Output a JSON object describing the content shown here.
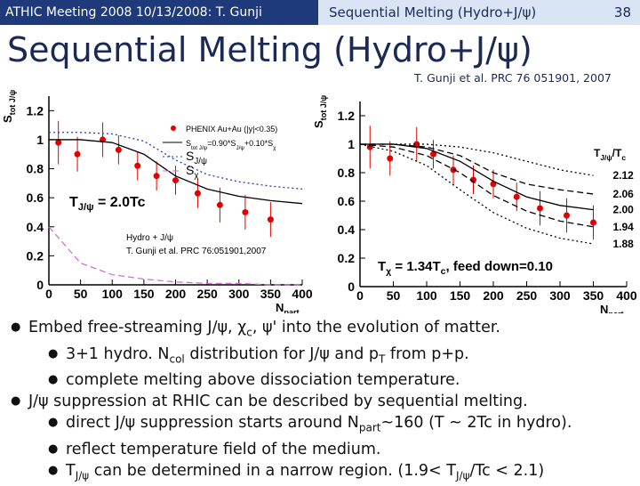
{
  "header": {
    "left": "ATHIC Meeting 2008 10/13/2008: T. Gunji",
    "center": "Sequential Melting (Hydro+J/ψ)",
    "page": "38"
  },
  "title": "Sequential Melting (Hydro+J/ψ)",
  "citation": "T. Gunji et al. PRC 76 051901, 2007",
  "plots": [
    {
      "type": "line",
      "ylabel": [
        "S",
        "tot J/ψ"
      ],
      "xlabel": [
        "N",
        "part"
      ],
      "xlim": [
        0,
        400
      ],
      "xticks": [
        0,
        50,
        100,
        150,
        200,
        250,
        300,
        350,
        400
      ],
      "ylim": [
        0,
        1.3
      ],
      "yticks": [
        0,
        0.2,
        0.4,
        0.6,
        0.8,
        1,
        1.2
      ],
      "legend": "upper-right",
      "annotations": [
        [
          "T",
          "J/ψ",
          " = 2.0Tc"
        ],
        [
          "Hydro + J/ψ"
        ],
        [
          "T. Gunji et al. PRC 76:051901,2007"
        ]
      ],
      "series": [
        {
          "name": [
            "PHENIX Au+Au (|y|<0.35)"
          ],
          "style": "points",
          "color": "#e00000",
          "x": [
            15,
            45,
            85,
            110,
            140,
            170,
            200,
            235,
            270,
            310,
            350
          ],
          "values": [
            0.98,
            0.9,
            1.0,
            0.93,
            0.82,
            0.75,
            0.72,
            0.63,
            0.55,
            0.5,
            0.45
          ],
          "errors": [
            0.15,
            0.12,
            0.12,
            0.1,
            0.1,
            0.1,
            0.1,
            0.1,
            0.12,
            0.12,
            0.12
          ]
        },
        {
          "name": [
            "S",
            "tot J/ψ",
            "=0.90*S",
            "J/ψ",
            "+0.10*S",
            "χ"
          ],
          "style": "solid",
          "color": "#000000",
          "x": [
            0,
            50,
            100,
            150,
            200,
            250,
            300,
            350,
            400
          ],
          "values": [
            1.0,
            1.0,
            0.98,
            0.9,
            0.75,
            0.66,
            0.61,
            0.58,
            0.56
          ]
        },
        {
          "name": [
            "S",
            "J/ψ"
          ],
          "style": "dotted",
          "color": "#1f3fbf",
          "x": [
            0,
            50,
            100,
            150,
            200,
            250,
            300,
            350,
            400
          ],
          "values": [
            1.05,
            1.05,
            1.04,
            0.99,
            0.86,
            0.76,
            0.71,
            0.68,
            0.66
          ]
        },
        {
          "name": [
            "S",
            "χ"
          ],
          "style": "dashed",
          "color": "#d070d0",
          "x": [
            0,
            50,
            100,
            150,
            200,
            250,
            300,
            350,
            400
          ],
          "values": [
            0.4,
            0.15,
            0.07,
            0.04,
            0.02,
            0.01,
            0.01,
            0.0,
            0.0
          ]
        }
      ]
    },
    {
      "type": "line",
      "ylabel": [
        "S",
        "tot J/ψ"
      ],
      "xlabel": [
        "N",
        "part"
      ],
      "xlim": [
        0,
        400
      ],
      "xticks": [
        0,
        50,
        100,
        150,
        200,
        250,
        300,
        350,
        400
      ],
      "ylim": [
        0,
        1.3
      ],
      "yticks": [
        0,
        0.2,
        0.4,
        0.6,
        0.8,
        1,
        1.2
      ],
      "legend": "curve-ends",
      "legend_title": [
        "T",
        "J/ψ",
        "/T",
        "c"
      ],
      "annotations": [
        [
          "T",
          "χ",
          " = 1.34T",
          "c",
          ", feed down=0.10"
        ]
      ],
      "series": [
        {
          "style": "points",
          "color": "#e00000",
          "x": [
            15,
            45,
            85,
            110,
            140,
            170,
            200,
            235,
            270,
            310,
            350
          ],
          "values": [
            0.98,
            0.9,
            1.0,
            0.93,
            0.82,
            0.75,
            0.72,
            0.63,
            0.55,
            0.5,
            0.45
          ],
          "errors": [
            0.15,
            0.12,
            0.12,
            0.1,
            0.1,
            0.1,
            0.1,
            0.1,
            0.12,
            0.12,
            0.12
          ]
        },
        {
          "name": [
            "2.12"
          ],
          "style": "dotted",
          "color": "#000000",
          "x": [
            0,
            50,
            100,
            150,
            200,
            250,
            300,
            350
          ],
          "values": [
            1.0,
            1.0,
            1.0,
            0.98,
            0.94,
            0.88,
            0.82,
            0.78
          ]
        },
        {
          "name": [
            "2.06"
          ],
          "style": "dashed",
          "color": "#000000",
          "x": [
            0,
            50,
            100,
            150,
            200,
            250,
            300,
            350
          ],
          "values": [
            1.0,
            1.0,
            0.98,
            0.92,
            0.8,
            0.72,
            0.68,
            0.65
          ]
        },
        {
          "name": [
            "2.00"
          ],
          "style": "solid",
          "color": "#000000",
          "x": [
            0,
            50,
            100,
            150,
            200,
            250,
            300,
            350
          ],
          "values": [
            1.0,
            1.0,
            0.97,
            0.88,
            0.74,
            0.63,
            0.57,
            0.54
          ]
        },
        {
          "name": [
            "1.94"
          ],
          "style": "dashed",
          "color": "#000000",
          "x": [
            0,
            50,
            100,
            150,
            200,
            250,
            300,
            350
          ],
          "values": [
            1.0,
            0.98,
            0.92,
            0.8,
            0.64,
            0.53,
            0.46,
            0.42
          ]
        },
        {
          "name": [
            "1.88"
          ],
          "style": "dotted",
          "color": "#000000",
          "x": [
            0,
            50,
            100,
            150,
            200,
            250,
            300,
            350
          ],
          "values": [
            1.0,
            0.95,
            0.85,
            0.68,
            0.52,
            0.41,
            0.34,
            0.3
          ]
        }
      ]
    }
  ],
  "bullets": [
    {
      "parts": [
        "Embed free-streaming J/ψ, χ",
        "c",
        ", ψ' into the evolution of matter."
      ],
      "children": [
        {
          "parts": [
            "3+1 hydro. N",
            "col",
            " distribution for J/ψ and p",
            "T",
            " from p+p."
          ]
        },
        {
          "parts": [
            "complete melting above dissociation temperature."
          ]
        }
      ]
    },
    {
      "parts": [
        "J/ψ suppression at RHIC can be described by sequential melting."
      ],
      "children": [
        {
          "parts": [
            "direct J/ψ suppression starts around N",
            "part",
            "~160 (T ~ 2Tc in hydro)."
          ]
        },
        {
          "parts": [
            "reflect temperature field of the medium."
          ]
        },
        {
          "parts": [
            "T",
            "J/ψ",
            " can be determined in  a narrow region. (1.9< T",
            "J/ψ",
            "/Tc < 2.1)"
          ]
        }
      ]
    }
  ]
}
